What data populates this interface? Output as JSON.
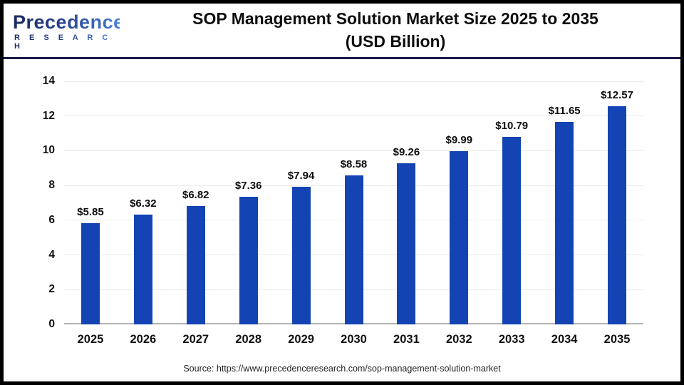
{
  "header": {
    "logo": {
      "brand": "Precedence",
      "sub": "R E S E A R C H"
    },
    "title_line1": "SOP Management Solution Market Size 2025 to 2035",
    "title_line2": "(USD Billion)"
  },
  "footer": {
    "source": "Source: https://www.precedenceresearch.com/sop-management-solution-market"
  },
  "chart_data": {
    "type": "bar",
    "title": "SOP Management Solution Market Size 2025 to 2035 (USD Billion)",
    "categories": [
      "2025",
      "2026",
      "2027",
      "2028",
      "2029",
      "2030",
      "2031",
      "2032",
      "2033",
      "2034",
      "2035"
    ],
    "values": [
      5.85,
      6.32,
      6.82,
      7.36,
      7.94,
      8.58,
      9.26,
      9.99,
      10.79,
      11.65,
      12.57
    ],
    "data_labels": [
      "$5.85",
      "$6.32",
      "$6.82",
      "$7.36",
      "$7.94",
      "$8.58",
      "$9.26",
      "$9.99",
      "$10.79",
      "$11.65",
      "$12.57"
    ],
    "xlabel": "",
    "ylabel": "",
    "ylim": [
      0,
      14
    ],
    "ytick_step": 2,
    "ytick_labels": [
      "0",
      "2",
      "4",
      "6",
      "8",
      "10",
      "12",
      "14"
    ],
    "grid": true,
    "legend": "none",
    "bar_color": "#1444b3"
  },
  "colors": {
    "bar": "#1444b3",
    "separator_line": "#191945",
    "outer_border": "#000000",
    "gridline": "#eaeaea",
    "axis_line": "#b3b3b3",
    "logo_dark": "#1c2a5e",
    "logo_light": "#4a80d8"
  }
}
